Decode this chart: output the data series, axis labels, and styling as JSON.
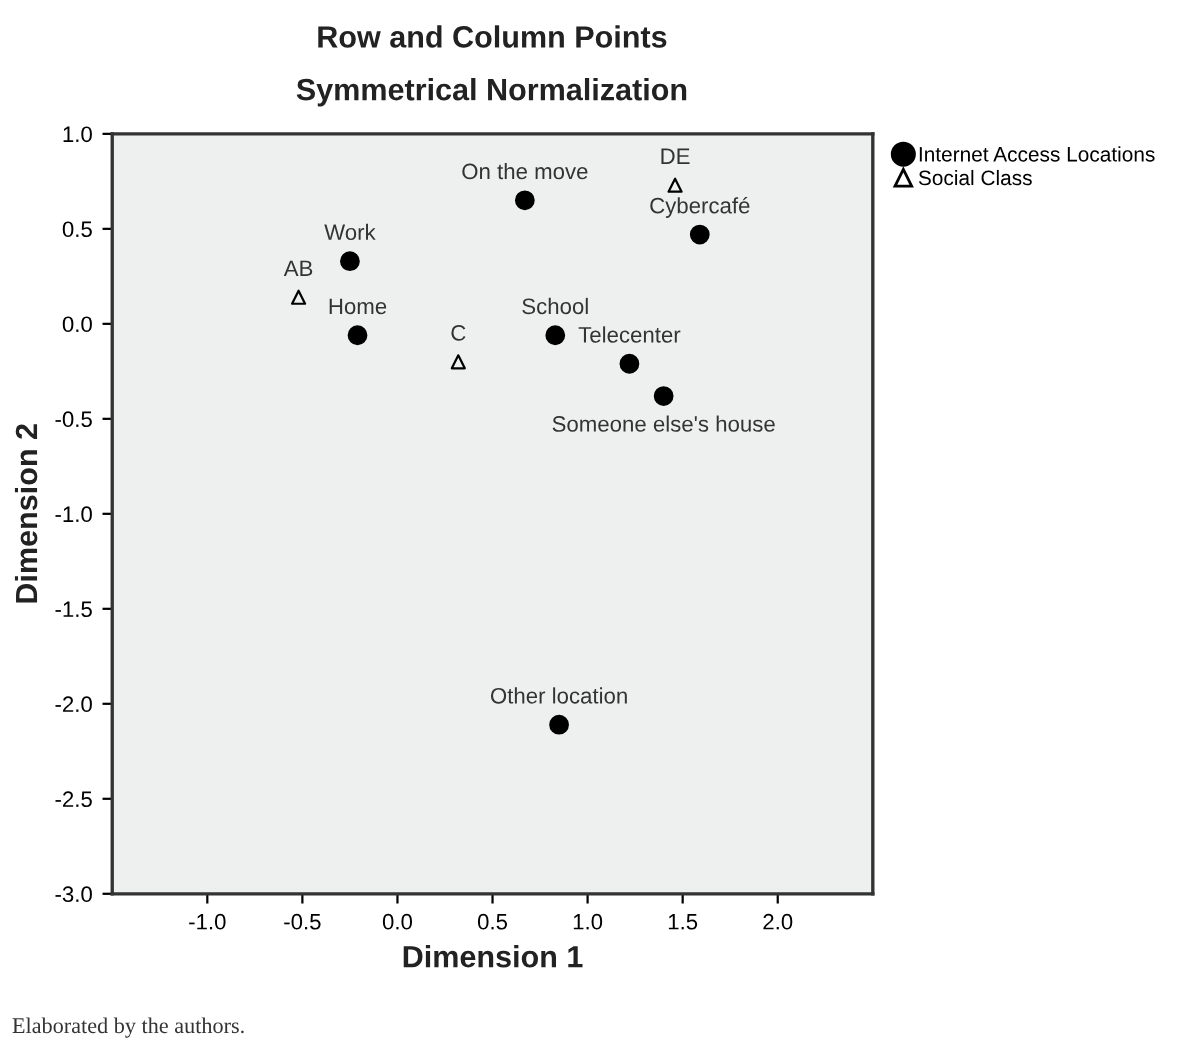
{
  "chart_data": {
    "type": "scatter",
    "title": "Row and Column Points",
    "subtitle": "Symmetrical Normalization",
    "xlabel": "Dimension 1",
    "ylabel": "Dimension 2",
    "xlim": [
      -1.5,
      2.5
    ],
    "ylim": [
      -3.0,
      1.0
    ],
    "xticks": [
      {
        "value": -1,
        "label": "-1.0"
      },
      -0.5,
      {
        "value": 0,
        "label": "0.0"
      },
      0.5,
      {
        "value": 1,
        "label": "1.0"
      },
      1.5,
      {
        "value": 2,
        "label": "2.0"
      }
    ],
    "yticks": [
      {
        "value": -3,
        "label": "-3.0"
      },
      -2.5,
      {
        "value": -2,
        "label": "-2.0"
      },
      -1.5,
      {
        "value": -1,
        "label": "-1.0"
      },
      -0.5,
      {
        "value": 0,
        "label": "0.0"
      },
      0.5,
      {
        "value": 1,
        "label": "1.0"
      }
    ],
    "grid": false,
    "legend": "top right",
    "series": [
      {
        "name": "Internet Access Locations",
        "color": "#000000",
        "marker": "circle",
        "x": [
          0.67,
          1.59,
          -0.25,
          -0.21,
          0.83,
          1.22,
          1.4,
          0.85
        ],
        "values": [
          0.65,
          0.47,
          0.33,
          -0.06,
          -0.06,
          -0.21,
          -0.38,
          -2.11
        ]
      },
      {
        "name": "Social Class",
        "color": "#000000",
        "marker": "triangle",
        "x": [
          1.46,
          -0.52,
          0.32
        ],
        "values": [
          0.73,
          0.14,
          -0.2
        ]
      }
    ],
    "annotations": [
      {
        "text": "On the move",
        "x": 0.67,
        "y": 0.65
      },
      {
        "text": "Cybercafé",
        "x": 1.59,
        "y": 0.47
      },
      {
        "text": "Work",
        "x": -0.25,
        "y": 0.33
      },
      {
        "text": "Home",
        "x": -0.21,
        "y": -0.06
      },
      {
        "text": "School",
        "x": 0.83,
        "y": -0.06
      },
      {
        "text": "Telecenter",
        "x": 1.22,
        "y": -0.21
      },
      {
        "text": "Someone else's house",
        "x": 1.4,
        "y": -0.38
      },
      {
        "text": "Other location",
        "x": 0.85,
        "y": -2.11
      },
      {
        "text": "DE",
        "x": 1.46,
        "y": 0.73
      },
      {
        "text": "AB",
        "x": -0.52,
        "y": 0.14
      },
      {
        "text": "C",
        "x": 0.32,
        "y": -0.2
      },
      "Elaborated by the authors."
    ]
  }
}
